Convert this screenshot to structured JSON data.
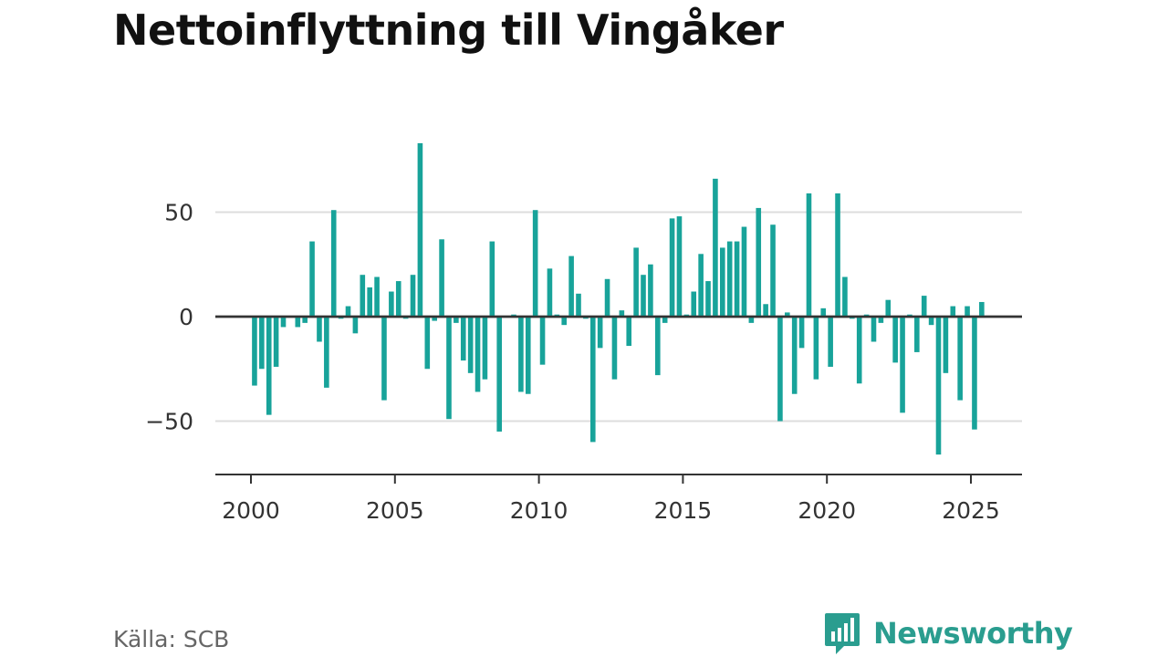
{
  "title": "Nettoinflyttning till Vingåker",
  "source": "Källa: SCB",
  "brand": {
    "name": "Newsworthy",
    "icon": "bar-chart-speech-bubble-icon"
  },
  "colors": {
    "bar": "#18a39a",
    "grid": "#dddddd",
    "axis": "#333333",
    "brand": "#2a9d8f",
    "text": "#333333"
  },
  "chart_data": {
    "type": "bar",
    "title": "Nettoinflyttning till Vingåker",
    "xlabel": "",
    "ylabel": "",
    "x_tick_labels": [
      "2000",
      "2005",
      "2010",
      "2015",
      "2020",
      "2025"
    ],
    "y_tick_labels": [
      "50",
      "0",
      "−50"
    ],
    "y_ticks": [
      50,
      0,
      -50
    ],
    "xlim": [
      "2000-01",
      "2026-03"
    ],
    "ylim": [
      -75,
      85
    ],
    "grid": true,
    "frequency": "quarterly",
    "start_period": "2000-Q1",
    "values": [
      -33,
      -25,
      -47,
      -24,
      -5,
      0,
      -5,
      -3,
      36,
      -12,
      -34,
      51,
      -1,
      5,
      -8,
      20,
      14,
      19,
      -40,
      12,
      17,
      -1,
      20,
      83,
      -25,
      -2,
      37,
      -49,
      -3,
      -21,
      -27,
      -36,
      -30,
      36,
      -55,
      0,
      1,
      -36,
      -37,
      51,
      -23,
      23,
      1,
      -4,
      29,
      11,
      -1,
      -60,
      -15,
      18,
      -30,
      3,
      -14,
      33,
      20,
      25,
      -28,
      -3,
      47,
      48,
      1,
      12,
      30,
      17,
      66,
      33,
      36,
      36,
      43,
      -3,
      52,
      6,
      44,
      -50,
      2,
      -37,
      -15,
      59,
      -30,
      4,
      -24,
      59,
      19,
      -1,
      -32,
      1,
      -12,
      -3,
      8,
      -22,
      -46,
      1,
      -17,
      10,
      -4,
      -66,
      -27,
      5,
      -40,
      5,
      -54,
      7
    ]
  }
}
